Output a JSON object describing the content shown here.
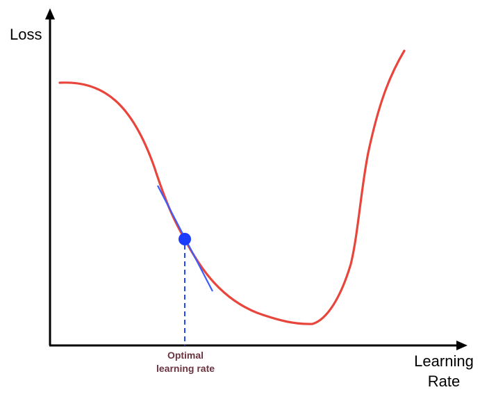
{
  "axes": {
    "y_label": "Loss",
    "x_label_line1": "Learning",
    "x_label_line2": "Rate"
  },
  "annotation": {
    "line1": "Optimal",
    "line2": "learning rate"
  },
  "colors": {
    "axis": "#000000",
    "curve": "#e8453c",
    "tangent": "#3b5cff",
    "point": "#1a3cff",
    "guide": "#2244ff",
    "annotation_text": "#6b3340"
  }
}
